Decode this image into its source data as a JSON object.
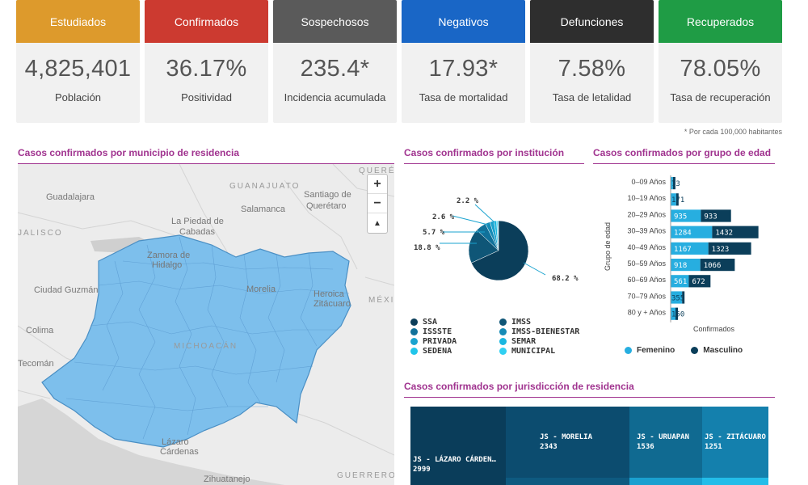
{
  "cards": [
    {
      "header": "Estudiados",
      "value": "4,825,401",
      "sub": "Población",
      "color": "#dd9a2c"
    },
    {
      "header": "Confirmados",
      "value": "36.17%",
      "sub": "Positividad",
      "color": "#cc3a30"
    },
    {
      "header": "Sospechosos",
      "value": "235.4*",
      "sub": "Incidencia acumulada",
      "color": "#5a5a5a"
    },
    {
      "header": "Negativos",
      "value": "17.93*",
      "sub": "Tasa de mortalidad",
      "color": "#1966c6"
    },
    {
      "header": "Defunciones",
      "value": "7.58%",
      "sub": "Tasa de letalidad",
      "color": "#2e2e2e"
    },
    {
      "header": "Recuperados",
      "value": "78.05%",
      "sub": "Tasa de recuperación",
      "color": "#1f9c45"
    }
  ],
  "footnote": "* Por cada 100,000 habitantes",
  "sections": {
    "map_title": "Casos confirmados por municipio de residencia",
    "institution_title": "Casos confirmados por institución",
    "age_title": "Casos confirmados por grupo de edad",
    "jurisdiction_title": "Casos confirmados por jurisdicción de residencia"
  },
  "map": {
    "zoom_in": "+",
    "zoom_out": "−",
    "reset": "▲",
    "labels": [
      {
        "text": "GUANAJUATO",
        "caps": true
      },
      {
        "text": "QUERÉTARO",
        "caps": true
      },
      {
        "text": "Guadalajara"
      },
      {
        "text": "Santiago de"
      },
      {
        "text": "Querétaro"
      },
      {
        "text": "Salamanca"
      },
      {
        "text": "La Piedad de"
      },
      {
        "text": "Cabadas"
      },
      {
        "text": "Zamora de"
      },
      {
        "text": "Hidalgo"
      },
      {
        "text": "Ciudad Guzmán"
      },
      {
        "text": "Morelia"
      },
      {
        "text": "Heroica"
      },
      {
        "text": "Zitácuaro"
      },
      {
        "text": "MÉXICO",
        "caps": true
      },
      {
        "text": "Colima"
      },
      {
        "text": "MICHOACÁN",
        "caps": true
      },
      {
        "text": "Tecomán"
      },
      {
        "text": "Lázaro"
      },
      {
        "text": "Cárdenas"
      },
      {
        "text": "Zihuatanejo"
      },
      {
        "text": "GUERRERO",
        "caps": true
      },
      {
        "text": "JALISCO",
        "caps": true
      }
    ],
    "fill": "#7dbfec"
  },
  "institution_chart": {
    "type": "pie",
    "slices": [
      {
        "name": "SSA",
        "value": 68.2,
        "label": "68.2 %",
        "color": "#0b3e5a"
      },
      {
        "name": "IMSS",
        "value": 18.8,
        "label": "18.8 %",
        "color": "#0f5677"
      },
      {
        "name": "ISSSTE",
        "value": 5.7,
        "label": "5.7 %",
        "color": "#11719a"
      },
      {
        "name": "IMSS-BIENESTAR",
        "value": 2.6,
        "label": "2.6 %",
        "color": "#168bb6"
      },
      {
        "name": "PRIVADA",
        "value": 2.2,
        "label": "2.2 %",
        "color": "#1aa3cf"
      },
      {
        "name": "SEMAR",
        "value": 1.4,
        "color": "#1ab7e0"
      },
      {
        "name": "SEDENA",
        "value": 0.6,
        "color": "#20c5ea"
      },
      {
        "name": "MUNICIPAL",
        "value": 0.5,
        "color": "#30d0f2"
      }
    ],
    "legend": [
      "SSA",
      "IMSS",
      "ISSSTE",
      "IMSS-BIENESTAR",
      "PRIVADA",
      "SEMAR",
      "SEDENA",
      "MUNICIPAL"
    ]
  },
  "chart_data": [
    {
      "type": "bar",
      "orientation": "horizontal",
      "stacked": true,
      "title": "Casos confirmados por grupo de edad",
      "xlabel": "Confirmados",
      "ylabel": "Grupo de edad",
      "categories": [
        "0–09 Años",
        "10–19 Años",
        "20–29 Años",
        "30–39 Años",
        "40–49 Años",
        "50–59 Años",
        "60–69 Años",
        "70–79 Años",
        "80 y + Años"
      ],
      "series": [
        {
          "name": "Femenino",
          "values": [
            73,
            171,
            935,
            1284,
            1167,
            918,
            561,
            355,
            150
          ],
          "color": "#27aee0"
        },
        {
          "name": "Masculino",
          "values": [
            73,
            171,
            933,
            1432,
            1323,
            1066,
            672,
            355,
            150
          ],
          "color": "#0b3e5a"
        }
      ],
      "labels": [
        [
          "73",
          ""
        ],
        [
          "171",
          ""
        ],
        [
          "935",
          "933"
        ],
        [
          "1284",
          "1432"
        ],
        [
          "1167",
          "1323"
        ],
        [
          "918",
          "1066"
        ],
        [
          "561",
          "672"
        ],
        [
          "355",
          ""
        ],
        [
          "150",
          ""
        ]
      ],
      "legend": [
        "Femenino",
        "Masculino"
      ]
    },
    {
      "type": "pie",
      "title": "Casos confirmados por institución",
      "categories": [
        "SSA",
        "IMSS",
        "ISSSTE",
        "IMSS-BIENESTAR",
        "PRIVADA",
        "SEMAR",
        "SEDENA",
        "MUNICIPAL"
      ],
      "values": [
        68.2,
        18.8,
        5.7,
        2.6,
        2.2,
        1.4,
        0.6,
        0.5
      ]
    }
  ],
  "treemap": {
    "tiles": [
      {
        "name": "JS - LÁZARO CÁRDEN…",
        "value": "2999",
        "color": "#0a3d5a"
      },
      {
        "name": "JS - MORELIA",
        "value": "2343",
        "color": "#0c4c6f"
      },
      {
        "name": "JS - URUAPAN",
        "value": "1536",
        "color": "#106a91"
      },
      {
        "name": "JS - ZITÁCUARO",
        "value": "1251",
        "color": "#1480ad"
      },
      {
        "name": "",
        "value": "",
        "color": "#0e5a80"
      },
      {
        "name": "",
        "value": "",
        "color": "#1aa0d0"
      },
      {
        "name": "",
        "value": "",
        "color": "#23bde9"
      }
    ]
  }
}
